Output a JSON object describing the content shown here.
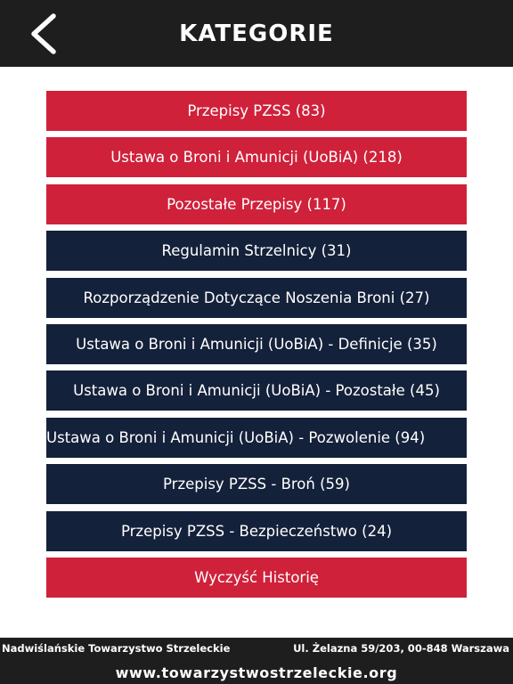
{
  "header": {
    "back_icon": "chevron-left-icon",
    "title": "KATEGORIE"
  },
  "categories": [
    {
      "label": "Przepisy PZSS (83)",
      "color": "#d0213a"
    },
    {
      "label": "Ustawa o Broni i Amunicji (UoBiA) (218)",
      "color": "#d0213a"
    },
    {
      "label": "Pozostałe Przepisy (117)",
      "color": "#d0213a"
    },
    {
      "label": "Regulamin Strzelnicy (31)",
      "color": "#14213a"
    },
    {
      "label": "Rozporządzenie Dotyczące Noszenia Broni (27)",
      "color": "#14213a"
    },
    {
      "label": "Ustawa o Broni i Amunicji (UoBiA) - Definicje (35)",
      "color": "#14213a"
    },
    {
      "label": "Ustawa o Broni i Amunicji (UoBiA) - Pozostałe (45)",
      "color": "#14213a"
    },
    {
      "label": "Ustawa o Broni i Amunicji (UoBiA) - Pozwolenie (94)",
      "color": "#14213a"
    },
    {
      "label": "Przepisy PZSS - Broń (59)",
      "color": "#14213a"
    },
    {
      "label": "Przepisy PZSS - Bezpieczeństwo (24)",
      "color": "#14213a"
    }
  ],
  "clear_history": {
    "label": "Wyczyść Historię",
    "color": "#d0213a"
  },
  "footer": {
    "organization": "Nadwiślańskie Towarzystwo Strzeleckie",
    "address": "Ul. Żelazna 59/203, 00-848 Warszawa",
    "website": "www.towarzystwostrzeleckie.org"
  }
}
